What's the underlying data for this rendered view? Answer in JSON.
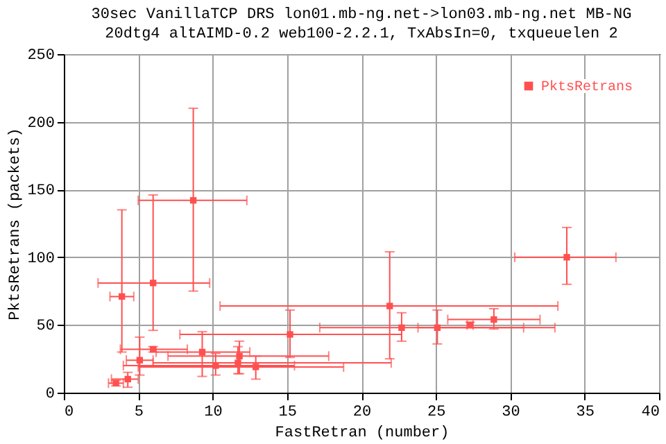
{
  "chart_data": {
    "type": "scatter",
    "title": "30sec VanillaTCP DRS lon01.mb-ng.net->lon03.mb-ng.net MB-NG",
    "subtitle": "20dtg4 altAIMD-0.2 web100-2.2.1, TxAbsIn=0, txqueuelen 2",
    "xlabel": "FastRetran (number)",
    "ylabel": "PktsRetrans (packets)",
    "x": [
      8.7,
      6.0,
      3.9,
      6.0,
      21.9,
      33.8,
      28.9,
      27.3,
      25.1,
      22.7,
      15.2,
      9.3,
      5.1,
      4.3,
      3.5,
      11.8,
      12.9,
      10.2,
      11.7
    ],
    "series": [
      {
        "name": "PktsRetrans",
        "color": "#ff5050",
        "values": [
          142,
          81,
          71,
          32,
          64,
          100,
          54,
          50,
          48,
          48,
          43,
          30,
          24,
          10,
          7,
          27,
          19,
          20,
          22
        ],
        "errors": [
          [
            75,
            210
          ],
          [
            46,
            146
          ],
          [
            30,
            135
          ],
          [
            30,
            34
          ],
          [
            25,
            104
          ],
          [
            80,
            122
          ],
          [
            47,
            62
          ],
          [
            48,
            52
          ],
          [
            36,
            61
          ],
          [
            38,
            59
          ],
          [
            26,
            61
          ],
          [
            12,
            45
          ],
          [
            13,
            41
          ],
          [
            4,
            15
          ],
          [
            5,
            9
          ],
          [
            14,
            38
          ],
          [
            10,
            27
          ],
          [
            13,
            29
          ],
          [
            14,
            34
          ]
        ],
        "xerrors": [
          [
            5.0,
            12.3
          ],
          [
            2.3,
            9.8
          ],
          [
            3.1,
            4.7
          ],
          [
            3.8,
            8.3
          ],
          [
            10.5,
            33.2
          ],
          [
            30.3,
            37.1
          ],
          [
            25.8,
            32.0
          ],
          [
            27.1,
            27.5
          ],
          [
            23.8,
            30.9
          ],
          [
            17.2,
            33.0
          ],
          [
            7.8,
            22.7
          ],
          [
            6.2,
            12.5
          ],
          [
            4.2,
            6.0
          ],
          [
            3.2,
            5.0
          ],
          [
            3.0,
            4.0
          ],
          [
            7.0,
            17.8
          ],
          [
            5.0,
            18.8
          ],
          [
            4.0,
            15.5
          ],
          [
            6.0,
            22.0
          ]
        ]
      }
    ],
    "xlim": [
      0,
      40
    ],
    "ylim": [
      0,
      250
    ],
    "xticks": [
      0,
      5,
      10,
      15,
      20,
      25,
      30,
      35,
      40
    ],
    "yticks": [
      0,
      50,
      100,
      150,
      200,
      250
    ],
    "grid": true,
    "legend": "top right",
    "marker": "square"
  }
}
